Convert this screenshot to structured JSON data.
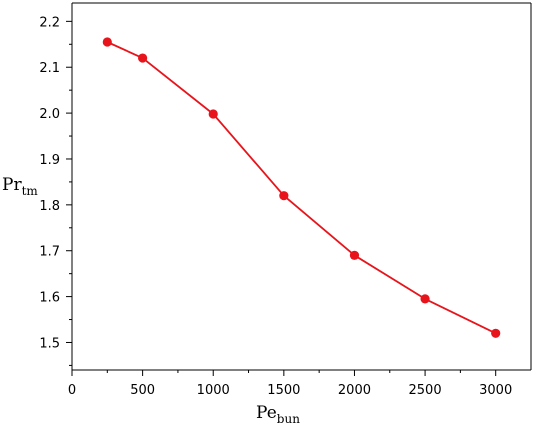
{
  "chart_data": {
    "type": "line",
    "xlabel": "Pe",
    "xlabel_sub": "bun",
    "ylabel": "Pr",
    "ylabel_sub": "tm",
    "xlim": [
      0,
      3250
    ],
    "ylim": [
      1.44,
      2.24
    ],
    "x_ticks": [
      0,
      500,
      1000,
      1500,
      2000,
      2500,
      3000
    ],
    "y_ticks": [
      1.5,
      1.6,
      1.7,
      1.8,
      1.9,
      2.0,
      2.1,
      2.2
    ],
    "y_tick_labels": [
      "1.5",
      "1.6",
      "1.7",
      "1.8",
      "1.9",
      "2.0",
      "2.1",
      "2.2"
    ],
    "grid": false,
    "color": "#e8141b",
    "series": [
      {
        "x": [
          250,
          500,
          1000,
          1500,
          2000,
          2500,
          3000
        ],
        "y": [
          2.155,
          2.12,
          1.998,
          1.82,
          1.69,
          1.595,
          1.52
        ]
      }
    ]
  }
}
